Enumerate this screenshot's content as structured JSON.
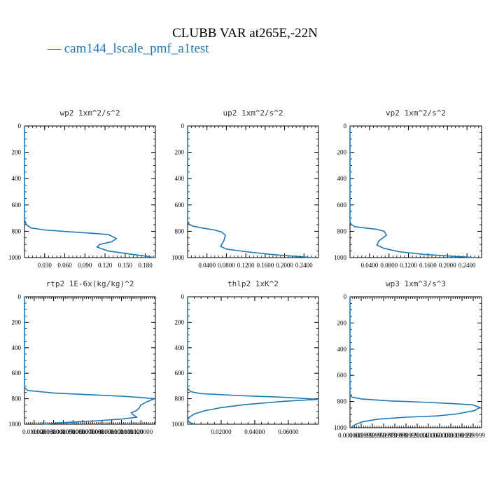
{
  "title": "CLUBB VAR at265E,-22N",
  "legend": [
    {
      "label": "cam144_lscale_pmf_a1test",
      "color": "#1f77b4"
    }
  ],
  "chart_data": [
    {
      "type": "line",
      "title": "wp2  1xm^2/s^2",
      "xlim": [
        0.0,
        0.195
      ],
      "ylim": [
        1000,
        0
      ],
      "xticks": [
        0.03,
        0.06,
        0.09,
        0.12,
        0.15,
        0.18
      ],
      "xtick_labels": [
        "0.030",
        "0.060",
        "0.090",
        "0.120",
        "0.150",
        "0.180"
      ],
      "yticks": [
        0,
        200,
        400,
        600,
        800,
        1000
      ],
      "ytick_labels": [
        "0",
        "200",
        "400",
        "600",
        "800",
        "1000"
      ],
      "series": [
        {
          "name": "cam144_lscale_pmf_a1test",
          "x": [
            0.0,
            0.0,
            0.002,
            0.004,
            0.01,
            0.03,
            0.07,
            0.1,
            0.125,
            0.137,
            0.13,
            0.112,
            0.108,
            0.125,
            0.16,
            0.183,
            0.193
          ],
          "y": [
            0,
            710,
            740,
            755,
            775,
            790,
            805,
            815,
            825,
            855,
            880,
            900,
            920,
            950,
            975,
            990,
            1000
          ]
        }
      ]
    },
    {
      "type": "line",
      "title": "up2  1xm^2/s^2",
      "xlim": [
        0.0,
        0.27
      ],
      "ylim": [
        1000,
        0
      ],
      "xticks": [
        0.04,
        0.08,
        0.12,
        0.16,
        0.2,
        0.24
      ],
      "xtick_labels": [
        "0.0400",
        "0.0800",
        "0.1200",
        "0.1600",
        "0.2000",
        "0.2400"
      ],
      "yticks": [
        0,
        200,
        400,
        600,
        800,
        1000
      ],
      "ytick_labels": [
        "0",
        "200",
        "400",
        "600",
        "800",
        "1000"
      ],
      "series": [
        {
          "name": "cam144_lscale_pmf_a1test",
          "x": [
            0.0,
            0.0,
            0.003,
            0.01,
            0.03,
            0.055,
            0.07,
            0.078,
            0.075,
            0.068,
            0.08,
            0.12,
            0.17,
            0.22,
            0.26
          ],
          "y": [
            0,
            720,
            745,
            760,
            775,
            790,
            805,
            830,
            870,
            915,
            935,
            955,
            975,
            990,
            1000
          ]
        }
      ]
    },
    {
      "type": "line",
      "title": "vp2  1xm^2/s^2",
      "xlim": [
        0.0,
        0.27
      ],
      "ylim": [
        1000,
        0
      ],
      "xticks": [
        0.04,
        0.08,
        0.12,
        0.16,
        0.2,
        0.24
      ],
      "xtick_labels": [
        "0.0400",
        "0.0800",
        "0.1200",
        "0.1600",
        "0.2000",
        "0.2400"
      ],
      "yticks": [
        0,
        200,
        400,
        600,
        800,
        1000
      ],
      "ytick_labels": [
        "0",
        "200",
        "400",
        "600",
        "800",
        "1000"
      ],
      "series": [
        {
          "name": "cam144_lscale_pmf_a1test",
          "x": [
            0.0,
            0.0,
            0.003,
            0.01,
            0.03,
            0.055,
            0.07,
            0.075,
            0.06,
            0.055,
            0.07,
            0.1,
            0.15,
            0.21,
            0.26
          ],
          "y": [
            0,
            730,
            750,
            765,
            775,
            785,
            800,
            830,
            870,
            905,
            930,
            955,
            975,
            990,
            1000
          ]
        }
      ]
    },
    {
      "type": "line",
      "title": "rtp2  1E-6x(kg/kg)^2",
      "xlim": [
        0.0,
        0.135
      ],
      "ylim": [
        1000,
        0
      ],
      "xticks": [
        0.01,
        0.02,
        0.03,
        0.04,
        0.05,
        0.06,
        0.07,
        0.08,
        0.09,
        0.1,
        0.11,
        0.12
      ],
      "xtick_labels": [
        "0.010000",
        "0.020000",
        "0.030000",
        "0.040000",
        "0.050000",
        "0.060000",
        "0.070000",
        "0.080000",
        "0.090000",
        "0.100000",
        "0.110000",
        "0.120000"
      ],
      "yticks": [
        0,
        200,
        400,
        600,
        800,
        1000
      ],
      "ytick_labels": [
        "0",
        "200",
        "400",
        "600",
        "800",
        "1000"
      ],
      "series": [
        {
          "name": "cam144_lscale_pmf_a1test",
          "x": [
            0.0,
            0.0,
            0.003,
            0.03,
            0.07,
            0.1,
            0.12,
            0.134,
            0.126,
            0.12,
            0.118,
            0.115,
            0.11,
            0.112,
            0.116,
            0.1,
            0.07,
            0.035,
            0.02
          ],
          "y": [
            0,
            710,
            735,
            755,
            770,
            780,
            790,
            800,
            825,
            850,
            875,
            895,
            910,
            925,
            945,
            960,
            975,
            990,
            1000
          ]
        }
      ]
    },
    {
      "type": "line",
      "title": "thlp2  1xK^2",
      "xlim": [
        0.0,
        0.078
      ],
      "ylim": [
        1000,
        0
      ],
      "xticks": [
        0.02,
        0.04,
        0.06
      ],
      "xtick_labels": [
        "0.02000",
        "0.04000",
        "0.06000"
      ],
      "yticks": [
        0,
        200,
        400,
        600,
        800,
        1000
      ],
      "ytick_labels": [
        "0",
        "200",
        "400",
        "600",
        "800",
        "1000"
      ],
      "series": [
        {
          "name": "cam144_lscale_pmf_a1test",
          "x": [
            0.0,
            0.0,
            0.002,
            0.008,
            0.03,
            0.06,
            0.078,
            0.058,
            0.035,
            0.02,
            0.01,
            0.004,
            0.001,
            0.0,
            0.001,
            0.004
          ],
          "y": [
            0,
            720,
            745,
            760,
            775,
            790,
            805,
            820,
            845,
            870,
            895,
            920,
            945,
            965,
            985,
            1000
          ]
        }
      ]
    },
    {
      "type": "line",
      "title": "wp3  1xm^3/s^3",
      "xlim": [
        0.0,
        0.235
      ],
      "ylim": [
        1000,
        0
      ],
      "xticks": [
        0.0,
        0.02,
        0.04,
        0.06,
        0.08,
        0.1,
        0.12,
        0.14,
        0.16,
        0.18,
        0.2,
        0.22
      ],
      "xtick_labels": [
        "0.000000",
        "0.019999",
        "0.039999",
        "0.059999",
        "0.079999",
        "0.099999",
        "0.120000",
        "0.140000",
        "0.160000",
        "0.180000",
        "0.199999",
        "0.219999"
      ],
      "yticks": [
        0,
        200,
        400,
        600,
        800,
        1000
      ],
      "ytick_labels": [
        "0",
        "200",
        "400",
        "600",
        "800",
        "1000"
      ],
      "series": [
        {
          "name": "cam144_lscale_pmf_a1test",
          "x": [
            0.0,
            0.0,
            0.003,
            0.02,
            0.07,
            0.13,
            0.18,
            0.218,
            0.232,
            0.222,
            0.19,
            0.155,
            0.1,
            0.05,
            0.022,
            0.01,
            0.002
          ],
          "y": [
            0,
            745,
            765,
            780,
            795,
            805,
            815,
            825,
            845,
            870,
            895,
            910,
            920,
            935,
            955,
            975,
            1000
          ]
        }
      ]
    }
  ]
}
